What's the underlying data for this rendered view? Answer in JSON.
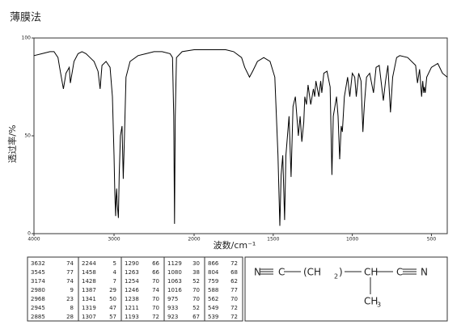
{
  "chart_data": {
    "type": "line",
    "title": "薄膜法",
    "xlabel": "波数/cm⁻¹",
    "ylabel": "透过率/%",
    "xlim": [
      4000,
      400
    ],
    "x_scale_change": 2000,
    "ylim": [
      0,
      100
    ],
    "xticks": [
      4000,
      3000,
      2000,
      1500,
      1000,
      500
    ],
    "yticks": [
      0,
      50,
      100
    ],
    "color": "#000000",
    "x": [
      4000,
      3900,
      3800,
      3750,
      3700,
      3680,
      3632,
      3600,
      3560,
      3545,
      3500,
      3450,
      3400,
      3350,
      3300,
      3250,
      3200,
      3174,
      3150,
      3100,
      3050,
      3020,
      3000,
      2990,
      2980,
      2975,
      2968,
      2960,
      2945,
      2935,
      2920,
      2900,
      2885,
      2870,
      2850,
      2800,
      2700,
      2600,
      2500,
      2400,
      2300,
      2270,
      2255,
      2244,
      2235,
      2220,
      2150,
      2000,
      1900,
      1800,
      1750,
      1700,
      1680,
      1650,
      1630,
      1600,
      1560,
      1520,
      1490,
      1470,
      1458,
      1450,
      1440,
      1428,
      1420,
      1400,
      1387,
      1375,
      1360,
      1341,
      1330,
      1319,
      1307,
      1300,
      1290,
      1280,
      1263,
      1254,
      1246,
      1238,
      1230,
      1211,
      1200,
      1193,
      1180,
      1160,
      1140,
      1129,
      1120,
      1100,
      1090,
      1080,
      1070,
      1063,
      1050,
      1030,
      1016,
      1000,
      985,
      975,
      960,
      945,
      933,
      928,
      923,
      910,
      890,
      866,
      850,
      830,
      804,
      790,
      775,
      759,
      745,
      720,
      700,
      650,
      600,
      588,
      575,
      562,
      555,
      549,
      545,
      539,
      530,
      500,
      460,
      430,
      400
    ],
    "values": [
      91,
      92,
      93,
      93,
      90,
      85,
      74,
      82,
      85,
      77,
      88,
      92,
      93,
      92,
      90,
      88,
      83,
      74,
      86,
      88,
      85,
      70,
      40,
      20,
      9,
      18,
      23,
      15,
      8,
      30,
      50,
      55,
      28,
      50,
      80,
      88,
      91,
      92,
      93,
      93,
      92,
      90,
      60,
      5,
      60,
      90,
      93,
      94,
      94,
      94,
      93,
      90,
      85,
      80,
      83,
      88,
      90,
      88,
      80,
      40,
      4,
      30,
      40,
      7,
      40,
      60,
      29,
      65,
      70,
      50,
      60,
      47,
      57,
      70,
      66,
      76,
      66,
      70,
      74,
      70,
      78,
      70,
      78,
      72,
      82,
      83,
      75,
      30,
      60,
      70,
      60,
      38,
      55,
      52,
      70,
      80,
      70,
      82,
      80,
      70,
      82,
      78,
      52,
      60,
      67,
      80,
      82,
      72,
      85,
      86,
      68,
      78,
      86,
      62,
      80,
      90,
      91,
      90,
      86,
      77,
      84,
      70,
      78,
      72,
      75,
      72,
      80,
      85,
      87,
      82,
      80
    ],
    "peak_table": [
      [
        [
          3632,
          74
        ],
        [
          3545,
          77
        ],
        [
          3174,
          74
        ],
        [
          2980,
          9
        ],
        [
          2968,
          23
        ],
        [
          2945,
          8
        ],
        [
          2885,
          28
        ]
      ],
      [
        [
          2244,
          5
        ],
        [
          1458,
          4
        ],
        [
          1428,
          7
        ],
        [
          1387,
          29
        ],
        [
          1341,
          50
        ],
        [
          1319,
          47
        ],
        [
          1307,
          57
        ]
      ],
      [
        [
          1290,
          66
        ],
        [
          1263,
          66
        ],
        [
          1254,
          70
        ],
        [
          1246,
          74
        ],
        [
          1238,
          70
        ],
        [
          1211,
          70
        ],
        [
          1193,
          72
        ]
      ],
      [
        [
          1129,
          30
        ],
        [
          1080,
          38
        ],
        [
          1063,
          52
        ],
        [
          1016,
          70
        ],
        [
          975,
          70
        ],
        [
          933,
          52
        ],
        [
          923,
          67
        ]
      ],
      [
        [
          866,
          72
        ],
        [
          804,
          68
        ],
        [
          759,
          62
        ],
        [
          588,
          77
        ],
        [
          562,
          70
        ],
        [
          549,
          72
        ],
        [
          539,
          72
        ]
      ]
    ]
  },
  "structure": [
    "N",
    "C",
    "(CH",
    "2",
    ")",
    "CH",
    "C",
    "N",
    "CH",
    "3"
  ]
}
